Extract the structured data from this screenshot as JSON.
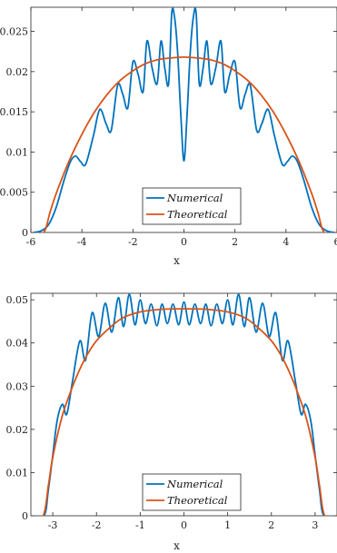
{
  "colors": {
    "numerical": "#0072BD",
    "theoretical": "#D95319",
    "axis": "#262626"
  },
  "chart_data": [
    {
      "type": "line",
      "title": "",
      "xlabel": "x",
      "ylabel": "",
      "xlim": [
        -6,
        6
      ],
      "ylim": [
        0,
        0.028
      ],
      "xticks": [
        -6,
        -4,
        -2,
        0,
        2,
        4,
        6
      ],
      "xtick_labels": [
        "-6",
        "-4",
        "-2",
        "0",
        "2",
        "4",
        "6"
      ],
      "yticks": [
        0,
        0.005,
        0.01,
        0.015,
        0.02,
        0.025
      ],
      "ytick_labels": [
        "0",
        "0.005",
        "0.01",
        "0.015",
        "0.02",
        "0.025"
      ],
      "grid": false,
      "legend_position": "bottom-center",
      "series": [
        {
          "name": "Numerical",
          "x": [
            -5.9,
            -5.6,
            -5.3,
            -5.0,
            -4.7,
            -4.45,
            -4.25,
            -4.05,
            -3.85,
            -3.55,
            -3.3,
            -3.05,
            -2.85,
            -2.6,
            -2.4,
            -2.2,
            -2.0,
            -1.8,
            -1.6,
            -1.45,
            -1.25,
            -1.05,
            -0.9,
            -0.75,
            -0.6,
            -0.48,
            -0.37,
            -0.25,
            -0.12,
            0.0,
            0.12,
            0.25,
            0.37,
            0.48,
            0.6,
            0.75,
            0.9,
            1.05,
            1.25,
            1.45,
            1.6,
            1.8,
            2.0,
            2.2,
            2.4,
            2.6,
            2.85,
            3.05,
            3.3,
            3.55,
            3.85,
            4.05,
            4.25,
            4.45,
            4.7,
            5.0,
            5.3,
            5.6,
            5.9
          ],
          "y": [
            0.0,
            0.0002,
            0.001,
            0.0032,
            0.0065,
            0.0088,
            0.0095,
            0.0088,
            0.0085,
            0.012,
            0.0153,
            0.0135,
            0.0127,
            0.0183,
            0.0172,
            0.0155,
            0.0212,
            0.0197,
            0.0175,
            0.0238,
            0.0205,
            0.0185,
            0.0238,
            0.0204,
            0.0185,
            0.0272,
            0.0268,
            0.0225,
            0.0145,
            0.0089,
            0.0145,
            0.0225,
            0.0268,
            0.0272,
            0.0185,
            0.0204,
            0.0238,
            0.0185,
            0.0205,
            0.0238,
            0.0175,
            0.0197,
            0.0212,
            0.0155,
            0.0172,
            0.0183,
            0.0127,
            0.0135,
            0.0153,
            0.012,
            0.0085,
            0.0088,
            0.0095,
            0.0088,
            0.0065,
            0.0032,
            0.001,
            0.0002,
            0.0
          ]
        },
        {
          "name": "Theoretical",
          "x": [
            -6.0,
            -5.5,
            -5.25,
            -5.0,
            -4.5,
            -4.0,
            -3.5,
            -3.0,
            -2.5,
            -2.0,
            -1.5,
            -1.0,
            -0.5,
            0.0,
            0.5,
            1.0,
            1.5,
            2.0,
            2.5,
            3.0,
            3.5,
            4.0,
            4.5,
            5.0,
            5.25,
            5.5,
            6.0
          ],
          "y": [
            0.0,
            0.0,
            0.0025,
            0.0049,
            0.0089,
            0.0122,
            0.015,
            0.0172,
            0.0189,
            0.0201,
            0.021,
            0.0215,
            0.0217,
            0.0218,
            0.0217,
            0.0215,
            0.021,
            0.0201,
            0.0189,
            0.0172,
            0.015,
            0.0122,
            0.0089,
            0.0049,
            0.0025,
            0.0,
            0.0
          ]
        }
      ]
    },
    {
      "type": "line",
      "title": "",
      "xlabel": "x",
      "ylabel": "",
      "xlim": [
        -3.5,
        3.5
      ],
      "ylim": [
        0,
        0.0515
      ],
      "xticks": [
        -3,
        -2,
        -1,
        0,
        1,
        2,
        3
      ],
      "xtick_labels": [
        "-3",
        "-2",
        "-1",
        "0",
        "1",
        "2",
        "3"
      ],
      "yticks": [
        0,
        0.01,
        0.02,
        0.03,
        0.04,
        0.05
      ],
      "ytick_labels": [
        "0",
        "0.01",
        "0.02",
        "0.03",
        "0.04",
        "0.05"
      ],
      "grid": false,
      "legend_position": "bottom-center",
      "series": [
        {
          "name": "Numerical",
          "x": [
            -3.5,
            -3.2,
            -3.1,
            -3.0,
            -2.9,
            -2.78,
            -2.68,
            -2.55,
            -2.38,
            -2.25,
            -2.1,
            -1.95,
            -1.8,
            -1.65,
            -1.5,
            -1.38,
            -1.25,
            -1.12,
            -1.0,
            -0.88,
            -0.75,
            -0.62,
            -0.5,
            -0.38,
            -0.25,
            -0.12,
            0.0,
            0.12,
            0.25,
            0.38,
            0.5,
            0.62,
            0.75,
            0.88,
            1.0,
            1.12,
            1.25,
            1.38,
            1.5,
            1.65,
            1.8,
            1.95,
            2.1,
            2.25,
            2.38,
            2.55,
            2.68,
            2.78,
            2.9,
            3.0,
            3.1,
            3.2,
            3.5
          ],
          "y": [
            0.0,
            0.0,
            0.006,
            0.014,
            0.022,
            0.0258,
            0.0235,
            0.031,
            0.0405,
            0.036,
            0.047,
            0.0415,
            0.0492,
            0.0425,
            0.0505,
            0.0438,
            0.0513,
            0.0442,
            0.05,
            0.0445,
            0.049,
            0.044,
            0.049,
            0.0445,
            0.049,
            0.0442,
            0.0495,
            0.0442,
            0.049,
            0.0445,
            0.049,
            0.044,
            0.049,
            0.0445,
            0.05,
            0.0442,
            0.0513,
            0.0438,
            0.0505,
            0.0425,
            0.0492,
            0.0415,
            0.047,
            0.036,
            0.0405,
            0.031,
            0.0235,
            0.0258,
            0.022,
            0.014,
            0.006,
            0.0,
            0.0
          ]
        },
        {
          "name": "Theoretical",
          "x": [
            -3.5,
            -3.22,
            -3.1,
            -3.0,
            -2.8,
            -2.6,
            -2.4,
            -2.2,
            -2.0,
            -1.7,
            -1.4,
            -1.0,
            -0.5,
            0.0,
            0.5,
            1.0,
            1.4,
            1.7,
            2.0,
            2.2,
            2.4,
            2.6,
            2.8,
            3.0,
            3.1,
            3.22,
            3.5
          ],
          "y": [
            0.0,
            0.0,
            0.007,
            0.0135,
            0.0225,
            0.0285,
            0.0335,
            0.0375,
            0.0405,
            0.0435,
            0.0458,
            0.0472,
            0.0478,
            0.0479,
            0.0478,
            0.0472,
            0.0458,
            0.0435,
            0.0405,
            0.0375,
            0.0335,
            0.0285,
            0.0225,
            0.0135,
            0.007,
            0.0,
            0.0
          ]
        }
      ]
    }
  ]
}
